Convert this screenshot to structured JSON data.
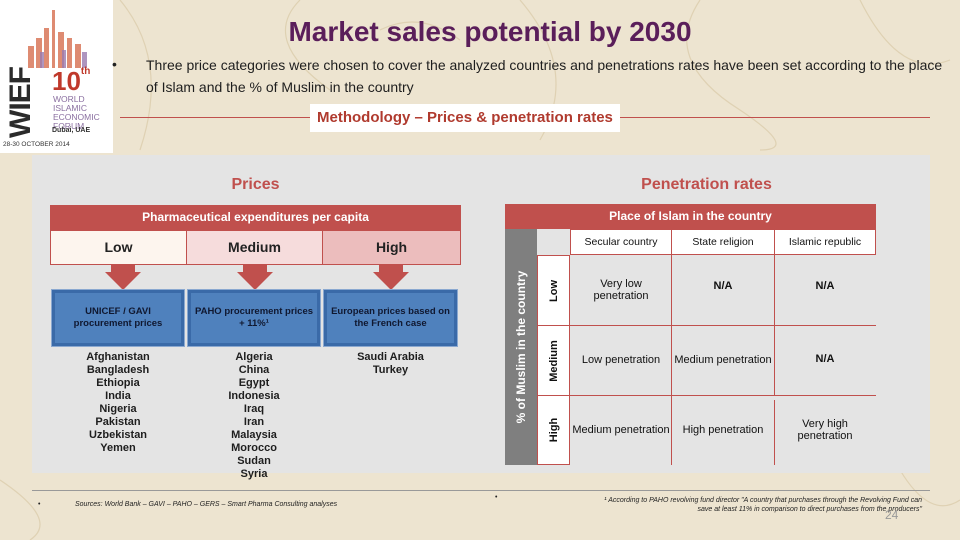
{
  "logo": {
    "wief": "WIEF",
    "edition_number": "10",
    "edition_suffix": "th",
    "forum_lines": [
      "WORLD",
      "ISLAMIC",
      "ECONOMIC",
      "FORUM"
    ],
    "place": "Dubai, UAE",
    "dates": "28-30 OCTOBER 2014"
  },
  "title": "Market sales potential by 2030",
  "intro_bullet": "•",
  "intro": "Three price categories were chosen to cover the analyzed countries and penetrations rates have been set according to the place of Islam and the % of Muslim in the country",
  "methodology_label": "Methodology – Prices & penetration rates",
  "prices": {
    "title": "Prices",
    "bar": "Pharmaceutical expenditures per capita",
    "levels": [
      "Low",
      "Medium",
      "High"
    ],
    "level_colors": [
      "#fdf5ee",
      "#f6dcdc",
      "#ecbdbd"
    ],
    "sources": [
      {
        "label": "UNICEF / GAVI procurement prices",
        "countries": [
          "Afghanistan",
          "Bangladesh",
          "Ethiopia",
          "India",
          "Nigeria",
          "Pakistan",
          "Uzbekistan",
          "Yemen"
        ]
      },
      {
        "label": "PAHO procurement prices + 11%¹",
        "countries": [
          "Algeria",
          "China",
          "Egypt",
          "Indonesia",
          "Iraq",
          "Iran",
          "Malaysia",
          "Morocco",
          "Sudan",
          "Syria"
        ]
      },
      {
        "label": "European prices based on the French case",
        "countries": [
          "Saudi Arabia",
          "Turkey"
        ]
      }
    ]
  },
  "penetration": {
    "title": "Penetration rates",
    "bar": "Place of Islam in the country",
    "side_label": "% of Muslim in the country",
    "columns": [
      "Secular country",
      "State religion",
      "Islamic republic"
    ],
    "rows": [
      {
        "label": "Low",
        "cells": [
          "Very low penetration",
          "N/A",
          "N/A"
        ]
      },
      {
        "label": "Medium",
        "cells": [
          "Low penetration",
          "Medium penetration",
          "N/A"
        ]
      },
      {
        "label": "High",
        "cells": [
          "Medium penetration",
          "High penetration",
          "Very high penetration"
        ]
      }
    ]
  },
  "footer": {
    "sources": "Sources: World Bank – GAVI – PAHO – GERS – Smart Pharma Consulting analyses",
    "note_line1": "¹ According to PAHO revolving fund director \"A country that purchases through the Revolving Fund can",
    "note_line2": "save at least 11% in comparison to direct purchases from the producers\"",
    "bullet": "•",
    "page_number": "24"
  },
  "colors": {
    "title": "#5a1e5a",
    "accent": "#c0504d",
    "box_blue": "#4f81bd",
    "panel_gray": "#e4e4e4",
    "side_gray": "#7f7f7f"
  }
}
